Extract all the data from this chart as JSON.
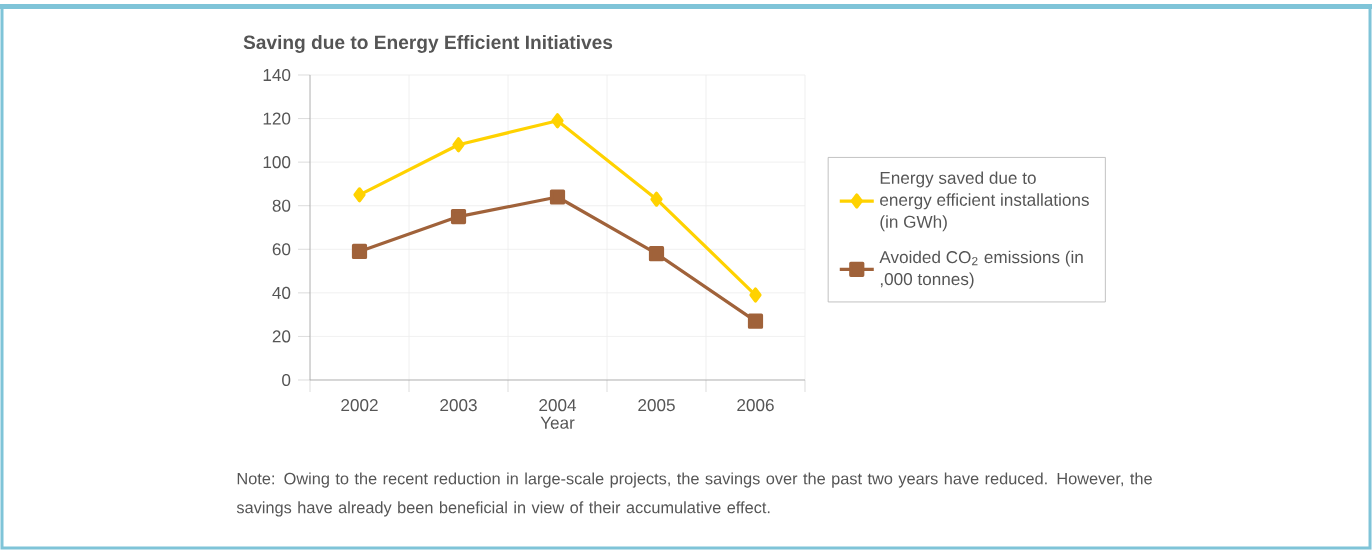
{
  "chart_data": {
    "type": "line",
    "title": "Saving due to Energy Efficient Initiatives",
    "xlabel": "Year",
    "categories": [
      "2002",
      "2003",
      "2004",
      "2005",
      "2006"
    ],
    "series": [
      {
        "name": "Energy saved due to energy efficient installations (in GWh)",
        "color": "#ffd200",
        "marker": "diamond",
        "values": [
          85,
          108,
          119,
          83,
          39
        ]
      },
      {
        "name": "Avoided CO$_{2}$ emissions (in ,000 tonnes)",
        "color": "#a0623a",
        "marker": "square",
        "values": [
          59,
          75,
          84,
          58,
          27
        ]
      }
    ],
    "ylim": [
      0,
      140
    ],
    "yticks": [
      0,
      20,
      40,
      60,
      80,
      100,
      120,
      140
    ],
    "grid": true,
    "legend": "right",
    "annotations": [
      "Note: Owing to the recent reduction in large-scale projects, the savings over the past two years have reduced. However, the savings have already been beneficial in view of their accumulative effect."
    ]
  }
}
